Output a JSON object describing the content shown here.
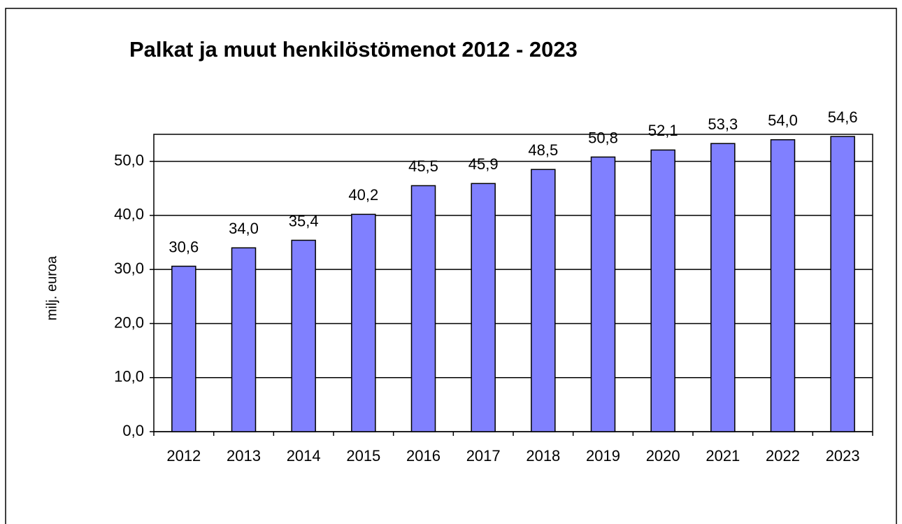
{
  "chart_data": {
    "type": "bar",
    "title": "Palkat ja muut henkilöstömenot 2012 - 2023",
    "y_label": "milj. euroa",
    "categories": [
      "2012",
      "2013",
      "2014",
      "2015",
      "2016",
      "2017",
      "2018",
      "2019",
      "2020",
      "2021",
      "2022",
      "2023"
    ],
    "values": [
      30.6,
      34.0,
      35.4,
      40.2,
      45.5,
      45.9,
      48.5,
      50.8,
      52.1,
      53.3,
      54.0,
      54.6
    ],
    "value_labels": [
      "30,6",
      "34,0",
      "35,4",
      "40,2",
      "45,5",
      "45,9",
      "48,5",
      "50,8",
      "52,1",
      "53,3",
      "54,0",
      "54,6"
    ],
    "color": "#8080ff",
    "ylim": [
      0,
      55
    ],
    "yticks": [
      {
        "value": 0,
        "label": "0,0"
      },
      {
        "value": 10,
        "label": "10,0"
      },
      {
        "value": 20,
        "label": "20,0"
      },
      {
        "value": 30,
        "label": "30,0"
      },
      {
        "value": 40,
        "label": "40,0"
      },
      {
        "value": 50,
        "label": "50,0"
      }
    ],
    "grid": true
  }
}
